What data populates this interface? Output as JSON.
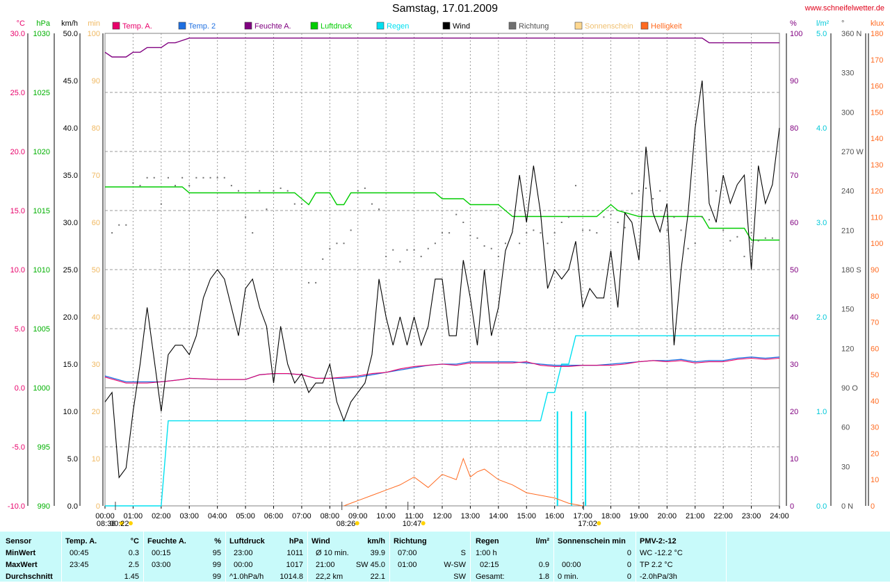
{
  "title": "Samstag, 17.01.2009",
  "site": "www.schneifelwetter.de",
  "colors": {
    "temp_a": "#e8006a",
    "temp_2": "#1e6fe0",
    "humidity": "#800080",
    "pressure": "#00cc00",
    "rain": "#00e0f0",
    "wind": "#000000",
    "direction": "#707070",
    "sunshine": "#ffd890",
    "brightness": "#ff6a20"
  },
  "chart_data": {
    "type": "line",
    "title": "Samstag, 17.01.2009",
    "x_ticks": [
      "00:00",
      "01:00",
      "02:00",
      "03:00",
      "04:00",
      "05:00",
      "06:00",
      "07:00",
      "08:00",
      "09:00",
      "10:00",
      "11:00",
      "12:00",
      "13:00",
      "14:00",
      "15:00",
      "16:00",
      "17:00",
      "18:00",
      "19:00",
      "20:00",
      "21:00",
      "22:00",
      "23:00",
      "24:00"
    ],
    "xlim": [
      0,
      24
    ],
    "axes": {
      "temp_c": {
        "label": "°C",
        "ticks": [
          "30.0",
          "25.0",
          "20.0",
          "15.0",
          "10.0",
          "5.0",
          "0.0",
          "-5.0",
          "-10.0"
        ],
        "range": [
          -10,
          30
        ]
      },
      "pressure_hpa": {
        "label": "hPa",
        "ticks": [
          "1030",
          "1025",
          "1020",
          "1015",
          "1010",
          "1005",
          "1000",
          "995",
          "990"
        ],
        "range": [
          990,
          1030
        ]
      },
      "wind_kmh": {
        "label": "km/h",
        "ticks": [
          "50.0",
          "45.0",
          "40.0",
          "35.0",
          "30.0",
          "25.0",
          "20.0",
          "15.0",
          "10.0",
          "5.0",
          "0.0"
        ],
        "range": [
          0,
          50
        ]
      },
      "sun_min": {
        "label": "min",
        "ticks": [
          "100",
          "90",
          "80",
          "70",
          "60",
          "50",
          "40",
          "30",
          "20",
          "10",
          "0"
        ],
        "range": [
          0,
          100
        ]
      },
      "humidity_pct": {
        "label": "%",
        "ticks": [
          "100",
          "90",
          "80",
          "70",
          "60",
          "50",
          "40",
          "30",
          "20",
          "10",
          "0"
        ],
        "range": [
          0,
          100
        ]
      },
      "rain_lm2": {
        "label": "l/m²",
        "ticks": [
          "5.0",
          "4.0",
          "3.0",
          "2.0",
          "1.0",
          "0.0"
        ],
        "range": [
          0,
          5
        ]
      },
      "direction_deg": {
        "label": "°",
        "ticks": [
          "360 N",
          "330",
          "300",
          "270 W",
          "240",
          "210",
          "180 S",
          "150",
          "120",
          "90  O",
          "60",
          "30",
          "0   N"
        ],
        "range": [
          0,
          360
        ]
      },
      "brightness_klux": {
        "label": "klux",
        "ticks": [
          "180",
          "170",
          "160",
          "150",
          "140",
          "130",
          "120",
          "110",
          "100",
          "90",
          "80",
          "70",
          "60",
          "50",
          "40",
          "30",
          "20",
          "10",
          "0"
        ],
        "range": [
          0,
          180
        ]
      }
    },
    "legend": [
      "Temp. A.",
      "Temp. 2",
      "Feuchte A.",
      "Luftdruck",
      "Regen",
      "Wind",
      "Richtung",
      "Sonnenschein",
      "Helligkeit"
    ],
    "series": [
      {
        "name": "Feuchte A.",
        "axis": "humidity_pct",
        "x": [
          0,
          0.25,
          0.75,
          1,
          1.25,
          1.5,
          2,
          2.25,
          2.5,
          3,
          3.25,
          21.25,
          21.5,
          24
        ],
        "y": [
          96,
          95,
          95,
          96,
          96,
          97,
          97,
          98,
          98,
          99,
          99,
          99,
          98,
          98
        ]
      },
      {
        "name": "Luftdruck",
        "axis": "pressure_hpa",
        "x": [
          0,
          2.75,
          3,
          6.75,
          7,
          7.25,
          7.5,
          8,
          8.25,
          8.5,
          8.75,
          11.75,
          12,
          12.75,
          13,
          14,
          14.25,
          14.5,
          17.5,
          17.75,
          18,
          18.25,
          19,
          21.25,
          21.5,
          22.75,
          23,
          24
        ],
        "y": [
          1017,
          1017,
          1016.5,
          1016.5,
          1016,
          1015.5,
          1016.5,
          1016.5,
          1015.5,
          1015.5,
          1016.5,
          1016.5,
          1016,
          1016,
          1015.5,
          1015.5,
          1015,
          1014.5,
          1014.5,
          1015,
          1015.5,
          1015,
          1014.5,
          1014.5,
          1013.5,
          1013.5,
          1012.5,
          1012.5
        ]
      },
      {
        "name": "Temp. A.",
        "axis": "temp_c",
        "x": [
          0,
          0.75,
          1.5,
          2,
          2.75,
          3,
          4,
          5,
          5.5,
          6,
          6.5,
          7,
          7.5,
          8,
          8.5,
          9,
          9.5,
          10,
          10.5,
          11,
          11.5,
          12,
          12.5,
          13,
          14,
          14.5,
          15,
          15.5,
          16,
          16.5,
          17,
          17.5,
          18,
          18.5,
          19,
          19.5,
          20,
          20.5,
          21,
          21.5,
          22,
          22.5,
          23,
          23.5,
          24
        ],
        "y": [
          0.9,
          0.4,
          0.4,
          0.5,
          0.7,
          0.8,
          0.7,
          0.7,
          1.1,
          1.2,
          1.2,
          1.1,
          0.8,
          0.8,
          0.9,
          1.0,
          1.2,
          1.3,
          1.6,
          1.8,
          1.9,
          2.0,
          1.9,
          2.1,
          2.1,
          2.1,
          2.2,
          1.9,
          1.8,
          1.8,
          1.9,
          1.9,
          1.9,
          2.0,
          2.2,
          2.3,
          2.2,
          2.3,
          2.1,
          2.2,
          2.2,
          2.4,
          2.5,
          2.4,
          2.5
        ]
      },
      {
        "name": "Temp. 2",
        "axis": "temp_c",
        "x": [
          0,
          0.75,
          1.5,
          2,
          2.75,
          3,
          4,
          5,
          5.5,
          6,
          6.5,
          7,
          7.5,
          8,
          8.5,
          9,
          9.5,
          10,
          10.5,
          11,
          11.5,
          12,
          12.5,
          13,
          14,
          14.5,
          15,
          15.5,
          16,
          16.5,
          17,
          17.5,
          18,
          18.5,
          19,
          19.5,
          20,
          20.5,
          21,
          21.5,
          22,
          22.5,
          23,
          23.5,
          24
        ],
        "y": [
          1.0,
          0.5,
          0.5,
          0.5,
          0.7,
          0.8,
          0.7,
          0.7,
          1.1,
          1.2,
          1.2,
          1.1,
          0.8,
          0.8,
          0.8,
          0.9,
          1.1,
          1.3,
          1.5,
          1.7,
          1.9,
          2.0,
          2.0,
          2.2,
          2.2,
          2.2,
          2.1,
          2.0,
          1.9,
          1.9,
          1.9,
          1.9,
          2.0,
          2.1,
          2.2,
          2.3,
          2.3,
          2.4,
          2.2,
          2.3,
          2.3,
          2.5,
          2.6,
          2.5,
          2.6
        ]
      },
      {
        "name": "Wind",
        "axis": "wind_kmh",
        "x": [
          0,
          0.25,
          0.5,
          0.75,
          1,
          1.25,
          1.5,
          2,
          2.25,
          2.5,
          2.75,
          3,
          3.25,
          3.5,
          3.75,
          4,
          4.25,
          4.5,
          4.75,
          5,
          5.25,
          5.5,
          5.75,
          6,
          6.25,
          6.5,
          6.75,
          7,
          7.25,
          7.5,
          7.75,
          8,
          8.25,
          8.5,
          8.75,
          9,
          9.25,
          9.5,
          9.75,
          10,
          10.25,
          10.5,
          10.75,
          11,
          11.25,
          11.5,
          11.75,
          12,
          12.25,
          12.5,
          12.75,
          13,
          13.25,
          13.5,
          13.75,
          14,
          14.25,
          14.5,
          14.75,
          15,
          15.25,
          15.5,
          15.75,
          16,
          16.25,
          16.5,
          16.75,
          17,
          17.25,
          17.5,
          17.75,
          18,
          18.25,
          18.5,
          18.75,
          19,
          19.25,
          19.5,
          19.75,
          20,
          20.25,
          20.5,
          20.75,
          21,
          21.25,
          21.5,
          21.75,
          22,
          22.25,
          22.5,
          22.75,
          23,
          23.25,
          23.5,
          23.75,
          24
        ],
        "y": [
          11,
          12,
          3,
          4,
          10,
          15,
          21,
          10,
          16,
          17,
          17,
          16,
          18,
          22,
          24,
          25,
          24,
          21,
          18,
          23,
          24,
          21,
          19,
          13,
          19,
          15,
          13,
          14,
          12,
          13,
          13,
          15,
          11,
          9,
          11,
          12,
          13,
          16,
          24,
          20,
          17,
          20,
          17,
          20,
          17,
          19,
          24,
          24,
          18,
          18,
          26,
          22,
          17,
          25,
          18,
          21,
          27,
          29,
          35,
          30,
          36,
          31,
          23,
          25,
          24,
          25,
          28,
          21,
          23,
          22,
          22,
          27,
          21,
          31,
          30,
          26,
          38,
          31,
          29,
          32,
          17,
          25,
          31,
          40,
          45,
          32,
          30,
          35,
          32,
          34,
          35,
          25,
          36,
          32,
          34,
          40
        ]
      },
      {
        "name": "Richtung",
        "axis": "direction_deg",
        "x": [
          0.25,
          0.5,
          0.75,
          1,
          1.25,
          1.5,
          1.75,
          2,
          2.25,
          2.5,
          2.75,
          3,
          3.25,
          3.5,
          3.75,
          4,
          4.25,
          4.5,
          4.75,
          5,
          5.25,
          5.5,
          5.75,
          6,
          6.25,
          6.5,
          6.75,
          7,
          7.25,
          7.5,
          7.75,
          8,
          8.25,
          8.5,
          8.75,
          9,
          9.25,
          9.5,
          9.75,
          10,
          10.25,
          10.5,
          10.75,
          11,
          11.25,
          11.5,
          11.75,
          12,
          12.25,
          12.5,
          12.75,
          13,
          13.25,
          13.5,
          13.75,
          14,
          14.25,
          14.5,
          14.75,
          15,
          15.25,
          15.5,
          15.75,
          16,
          16.25,
          16.5,
          16.75,
          17,
          17.25,
          17.5,
          17.75,
          18,
          18.25,
          18.5,
          18.75,
          19,
          19.25,
          19.5,
          19.75,
          20,
          20.25,
          20.5,
          20.75,
          21,
          21.25,
          21.5,
          21.75,
          22,
          22.25,
          22.5,
          22.75,
          23,
          23.25,
          23.5,
          23.75
        ],
        "y": [
          208,
          214,
          214,
          246,
          244,
          250,
          250,
          230,
          250,
          244,
          250,
          244,
          250,
          250,
          250,
          250,
          250,
          244,
          240,
          220,
          208,
          240,
          226,
          240,
          242,
          240,
          230,
          230,
          170,
          170,
          188,
          196,
          200,
          200,
          210,
          240,
          242,
          230,
          226,
          190,
          195,
          186,
          195,
          195,
          190,
          196,
          200,
          208,
          208,
          222,
          216,
          206,
          204,
          198,
          196,
          190,
          200,
          210,
          200,
          208,
          210,
          208,
          200,
          208,
          216,
          220,
          244,
          210,
          210,
          208,
          220,
          222,
          216,
          212,
          238,
          240,
          242,
          234,
          240,
          210,
          220,
          210,
          196,
          200,
          220,
          218,
          240,
          210,
          202,
          205,
          190,
          208,
          202,
          204,
          204
        ]
      },
      {
        "name": "Regen",
        "axis": "rain_lm2",
        "x": [
          0,
          2,
          2.25,
          6,
          15.5,
          15.75,
          16,
          16.25,
          16.5,
          16.75,
          17,
          24
        ],
        "y": [
          0,
          0,
          0.9,
          0.9,
          0.9,
          1.2,
          1.2,
          1.5,
          1.5,
          1.8,
          1.8,
          1.8
        ]
      },
      {
        "name": "Helligkeit",
        "axis": "brightness_klux",
        "x": [
          8.5,
          9,
          9.5,
          10,
          10.5,
          11,
          11.5,
          12,
          12.5,
          12.75,
          13,
          13.25,
          13.5,
          14,
          14.5,
          15,
          15.5,
          16,
          16.5,
          17
        ],
        "y": [
          0,
          2,
          4,
          6,
          8,
          11,
          7,
          12,
          10,
          18,
          11,
          13,
          14,
          10,
          8,
          5,
          4,
          3,
          1,
          0
        ]
      }
    ],
    "rain_intervals": [
      [
        16.1,
        1
      ],
      [
        16.6,
        1
      ],
      [
        17.1,
        1
      ]
    ],
    "time_markers": [
      {
        "label": "08:36",
        "x": -0.3
      },
      {
        "label": "00:22",
        "x": 0.37
      },
      {
        "label": "08:26",
        "x": 8.43
      },
      {
        "label": "10:47",
        "x": 10.78
      },
      {
        "label": "17:02",
        "x": 17.03
      }
    ]
  },
  "stats": {
    "headers": {
      "sensor": "Sensor",
      "temp": "Temp. A.",
      "temp_unit": "°C",
      "hum": "Feuchte A.",
      "hum_unit": "%",
      "press": "Luftdruck",
      "press_unit": "hPa",
      "wind": "Wind",
      "wind_unit": "km/h",
      "dir": "Richtung",
      "rain": "Regen",
      "rain_unit": "l/m²",
      "sun": "Sonnenschein min",
      "pmv": "PMV-2:-12"
    },
    "rows": {
      "min": "MinWert",
      "max": "MaxWert",
      "avg": "Durchschnitt"
    },
    "temp": {
      "min_time": "00:45",
      "min": "0.3",
      "max_time": "23:45",
      "max": "2.5",
      "avg": "1.45"
    },
    "hum": {
      "min_time": "00:15",
      "min": "95",
      "max_time": "03:00",
      "max": "99",
      "avg": "99"
    },
    "press": {
      "min_time": "23:00",
      "min": "1011",
      "max_time": "00:00",
      "max": "1017",
      "trend": "^1.0hPa/h",
      "avg": "1014.8"
    },
    "wind": {
      "avg10_label": "Ø 10 min.",
      "avg10": "39.9",
      "max_time": "21:00",
      "max": "SW 45.0",
      "dist": "22,2 km",
      "avg": "22.1"
    },
    "dir": {
      "t1": "07:00",
      "d1": "S",
      "t2": "01:00",
      "d2": "W-SW",
      "avg": "SW"
    },
    "rain": {
      "duration": "1:00 h",
      "max_time": "02:15",
      "max": "0.9",
      "total_label": "Gesamt:",
      "total": "1.8"
    },
    "sun": {
      "min": "0",
      "max_time": "00:00",
      "max": "0",
      "total": "0 min.",
      "total_val": "0"
    },
    "pmv": {
      "wc": "WC -12.2 °C",
      "tp": "TP 2.2 °C",
      "trend": "-2.0hPa/3h"
    }
  }
}
